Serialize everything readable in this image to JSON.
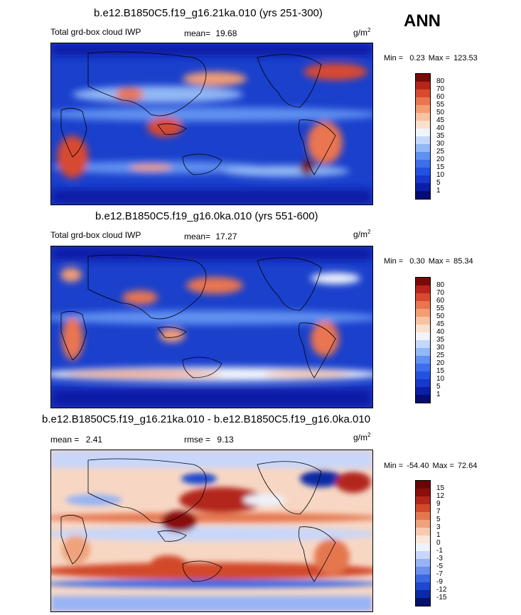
{
  "season": "ANN",
  "panels": [
    {
      "title": "b.e12.B1850C5.f19_g16.21ka.010 (yrs 251-300)",
      "left_label": "Total grd-box cloud IWP",
      "mean_label": "mean=",
      "mean_value": "19.68",
      "units": "g/m",
      "units_exp": "2",
      "min_label": "Min =",
      "min_value": "0.23",
      "max_label": "Max =",
      "max_value": "123.53"
    },
    {
      "title": "b.e12.B1850C5.f19_g16.0ka.010 (yrs 551-600)",
      "left_label": "Total grd-box cloud IWP",
      "mean_label": "mean=",
      "mean_value": "17.27",
      "units": "g/m",
      "units_exp": "2",
      "min_label": "Min =",
      "min_value": "0.30",
      "max_label": "Max =",
      "max_value": "85.34"
    },
    {
      "title": "b.e12.B1850C5.f19_g16.21ka.010 - b.e12.B1850C5.f19_g16.0ka.010",
      "mean_label": "mean =",
      "mean_value": "2.41",
      "rmse_label": "rmse =",
      "rmse_value": "9.13",
      "units": "g/m",
      "units_exp": "2",
      "min_label": "Min =",
      "min_value": "-54.40",
      "max_label": "Max =",
      "max_value": "72.64"
    }
  ],
  "chart_data": [
    {
      "type": "heatmap",
      "title": "b.e12.B1850C5.f19_g16.21ka.010 (yrs 251-300)",
      "variable": "Total grd-box cloud IWP",
      "units": "g/m2",
      "season": "ANN",
      "mean": 19.68,
      "min": 0.23,
      "max": 123.53,
      "colorbar_levels": [
        1,
        5,
        10,
        15,
        20,
        25,
        30,
        35,
        40,
        45,
        50,
        55,
        60,
        70,
        80
      ],
      "colorbar_labels": [
        "80",
        "70",
        "60",
        "55",
        "50",
        "45",
        "40",
        "35",
        "30",
        "25",
        "20",
        "15",
        "10",
        "5",
        "1"
      ],
      "colors": [
        "#050c75",
        "#0a1fa8",
        "#1638cc",
        "#2452e0",
        "#3d6fea",
        "#6091f0",
        "#92b8f5",
        "#c4d8fb",
        "#f0f4fb",
        "#fbe0cd",
        "#f9c2a0",
        "#f39d75",
        "#ea7551",
        "#d84a30",
        "#b8241a",
        "#7a0a08"
      ]
    },
    {
      "type": "heatmap",
      "title": "b.e12.B1850C5.f19_g16.0ka.010 (yrs 551-600)",
      "variable": "Total grd-box cloud IWP",
      "units": "g/m2",
      "season": "ANN",
      "mean": 17.27,
      "min": 0.3,
      "max": 85.34,
      "colorbar_levels": [
        1,
        5,
        10,
        15,
        20,
        25,
        30,
        35,
        40,
        45,
        50,
        55,
        60,
        70,
        80
      ],
      "colorbar_labels": [
        "80",
        "70",
        "60",
        "55",
        "50",
        "45",
        "40",
        "35",
        "30",
        "25",
        "20",
        "15",
        "10",
        "5",
        "1"
      ],
      "colors": [
        "#050c75",
        "#0a1fa8",
        "#1638cc",
        "#2452e0",
        "#3d6fea",
        "#6091f0",
        "#92b8f5",
        "#c4d8fb",
        "#f0f4fb",
        "#fbe0cd",
        "#f9c2a0",
        "#f39d75",
        "#ea7551",
        "#d84a30",
        "#b8241a",
        "#7a0a08"
      ]
    },
    {
      "type": "heatmap",
      "title": "b.e12.B1850C5.f19_g16.21ka.010 - b.e12.B1850C5.f19_g16.0ka.010",
      "variable": "difference",
      "units": "g/m2",
      "mean": 2.41,
      "rmse": 9.13,
      "min": -54.4,
      "max": 72.64,
      "colorbar_levels": [
        -15,
        -12,
        -9,
        -7,
        -5,
        -3,
        -1,
        0,
        1,
        3,
        5,
        7,
        9,
        12,
        15
      ],
      "colorbar_labels": [
        "15",
        "12",
        "9",
        "7",
        "5",
        "3",
        "1",
        "0",
        "-1",
        "-3",
        "-5",
        "-7",
        "-9",
        "-12",
        "-15"
      ],
      "colors": [
        "#04126e",
        "#0a2aa6",
        "#1d48cf",
        "#3c68e3",
        "#6a8fed",
        "#98b3f4",
        "#c8d6fa",
        "#eef2fb",
        "#fbe6d9",
        "#f7c9ad",
        "#f0a27c",
        "#e5774f",
        "#d24a2c",
        "#b3261a",
        "#8a0e0a",
        "#6a0505"
      ]
    }
  ]
}
